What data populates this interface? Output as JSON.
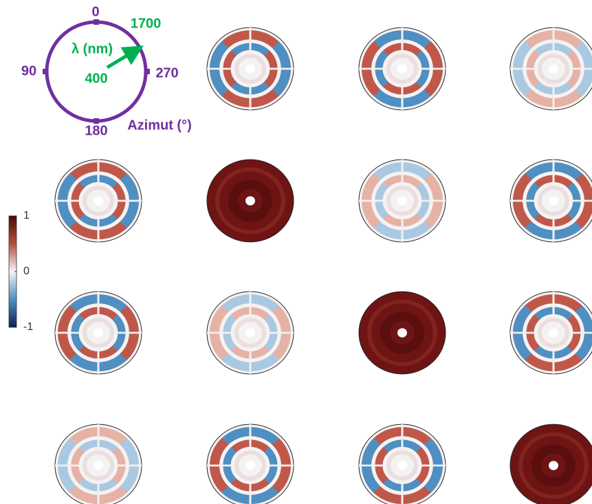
{
  "key": {
    "azimuth_ticks": [
      "0",
      "90",
      "180",
      "270"
    ],
    "azimuth_label": "Azimut (°)",
    "wavelength_label": "λ (nm)",
    "wavelength_min": "400",
    "wavelength_max": "1700"
  },
  "colorbar": {
    "lim": [
      -1,
      1
    ],
    "ticks": [
      1,
      0,
      -1
    ]
  }
}
